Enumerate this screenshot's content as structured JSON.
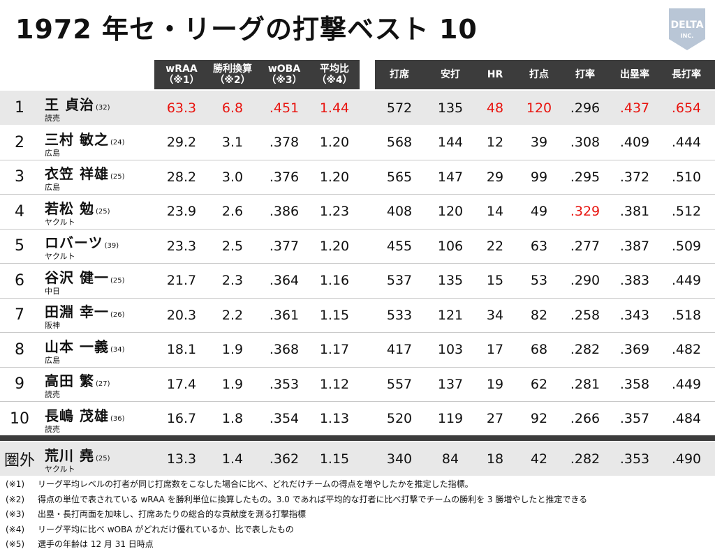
{
  "title": "1972 年セ・リーグの打撃ベスト 10",
  "logo": {
    "word": "DELTA",
    "sub": "INC."
  },
  "headers": {
    "wraa": [
      "wRAA",
      "（※1）"
    ],
    "win": [
      "勝利換算",
      "（※2）"
    ],
    "woba": [
      "wOBA",
      "（※3）"
    ],
    "ratio": [
      "平均比",
      "（※4）"
    ],
    "pa": "打席",
    "hits": "安打",
    "hr": "HR",
    "rbi": "打点",
    "avg": "打率",
    "obp": "出塁率",
    "slg": "長打率"
  },
  "rows": [
    {
      "rank": "1",
      "name": "王 貞治",
      "age": "(32)",
      "team": "読売",
      "wraa": "63.3",
      "win": "6.8",
      "woba": ".451",
      "ratio": "1.44",
      "pa": "572",
      "hits": "135",
      "hr": "48",
      "rbi": "120",
      "avg": ".296",
      "obp": ".437",
      "slg": ".654"
    },
    {
      "rank": "2",
      "name": "三村 敏之",
      "age": "(24)",
      "team": "広島",
      "wraa": "29.2",
      "win": "3.1",
      "woba": ".378",
      "ratio": "1.20",
      "pa": "568",
      "hits": "144",
      "hr": "12",
      "rbi": "39",
      "avg": ".308",
      "obp": ".409",
      "slg": ".444"
    },
    {
      "rank": "3",
      "name": "衣笠 祥雄",
      "age": "(25)",
      "team": "広島",
      "wraa": "28.2",
      "win": "3.0",
      "woba": ".376",
      "ratio": "1.20",
      "pa": "565",
      "hits": "147",
      "hr": "29",
      "rbi": "99",
      "avg": ".295",
      "obp": ".372",
      "slg": ".510"
    },
    {
      "rank": "4",
      "name": "若松 勉",
      "age": "(25)",
      "team": "ヤクルト",
      "wraa": "23.9",
      "win": "2.6",
      "woba": ".386",
      "ratio": "1.23",
      "pa": "408",
      "hits": "120",
      "hr": "14",
      "rbi": "49",
      "avg": ".329",
      "obp": ".381",
      "slg": ".512"
    },
    {
      "rank": "5",
      "name": "ロバーツ",
      "age": "(39)",
      "team": "ヤクルト",
      "wraa": "23.3",
      "win": "2.5",
      "woba": ".377",
      "ratio": "1.20",
      "pa": "455",
      "hits": "106",
      "hr": "22",
      "rbi": "63",
      "avg": ".277",
      "obp": ".387",
      "slg": ".509"
    },
    {
      "rank": "6",
      "name": "谷沢 健一",
      "age": "(25)",
      "team": "中日",
      "wraa": "21.7",
      "win": "2.3",
      "woba": ".364",
      "ratio": "1.16",
      "pa": "537",
      "hits": "135",
      "hr": "15",
      "rbi": "53",
      "avg": ".290",
      "obp": ".383",
      "slg": ".449"
    },
    {
      "rank": "7",
      "name": "田淵 幸一",
      "age": "(26)",
      "team": "阪神",
      "wraa": "20.3",
      "win": "2.2",
      "woba": ".361",
      "ratio": "1.15",
      "pa": "533",
      "hits": "121",
      "hr": "34",
      "rbi": "82",
      "avg": ".258",
      "obp": ".343",
      "slg": ".518"
    },
    {
      "rank": "8",
      "name": "山本 一義",
      "age": "(34)",
      "team": "広島",
      "wraa": "18.1",
      "win": "1.9",
      "woba": ".368",
      "ratio": "1.17",
      "pa": "417",
      "hits": "103",
      "hr": "17",
      "rbi": "68",
      "avg": ".282",
      "obp": ".369",
      "slg": ".482"
    },
    {
      "rank": "9",
      "name": "高田 繁",
      "age": "(27)",
      "team": "読売",
      "wraa": "17.4",
      "win": "1.9",
      "woba": ".353",
      "ratio": "1.12",
      "pa": "557",
      "hits": "137",
      "hr": "19",
      "rbi": "62",
      "avg": ".281",
      "obp": ".358",
      "slg": ".449"
    },
    {
      "rank": "10",
      "name": "長嶋 茂雄",
      "age": "(36)",
      "team": "読売",
      "wraa": "16.7",
      "win": "1.8",
      "woba": ".354",
      "ratio": "1.13",
      "pa": "520",
      "hits": "119",
      "hr": "27",
      "rbi": "92",
      "avg": ".266",
      "obp": ".357",
      "slg": ".484"
    }
  ],
  "outside": {
    "rank": "圏外",
    "name": "荒川 堯",
    "age": "(25)",
    "team": "ヤクルト",
    "wraa": "13.3",
    "win": "1.4",
    "woba": ".362",
    "ratio": "1.15",
    "pa": "340",
    "hits": "84",
    "hr": "18",
    "rbi": "42",
    "avg": ".282",
    "obp": ".353",
    "slg": ".490"
  },
  "red_cells": [
    {
      "row": 0,
      "field": "wraa"
    },
    {
      "row": 0,
      "field": "win"
    },
    {
      "row": 0,
      "field": "woba"
    },
    {
      "row": 0,
      "field": "ratio"
    },
    {
      "row": 0,
      "field": "hr"
    },
    {
      "row": 0,
      "field": "rbi"
    },
    {
      "row": 0,
      "field": "obp"
    },
    {
      "row": 0,
      "field": "slg"
    },
    {
      "row": 3,
      "field": "avg"
    }
  ],
  "colors": {
    "highlight_red": "#e8140f",
    "header_dark": "#3c3c3c",
    "row_shade": "#e8e8e8"
  },
  "footnotes": [
    {
      "mark": "(※1)",
      "text": "リーグ平均レベルの打者が同じ打席数をこなした場合に比べ、どれだけチームの得点を増やしたかを推定した指標。"
    },
    {
      "mark": "(※2)",
      "text": "得点の単位で表されている wRAA を勝利単位に換算したもの。3.0 であれば平均的な打者に比べ打撃でチームの勝利を 3 勝増やしたと推定できる"
    },
    {
      "mark": "(※3)",
      "text": "出塁・長打両面を加味し、打席あたりの総合的な貢献度を測る打撃指標"
    },
    {
      "mark": "(※4)",
      "text": "リーグ平均に比べ wOBA がどれだけ優れているか、比で表したもの"
    },
    {
      "mark": "(※5)",
      "text": "選手の年齢は 12 月 31 日時点"
    }
  ]
}
